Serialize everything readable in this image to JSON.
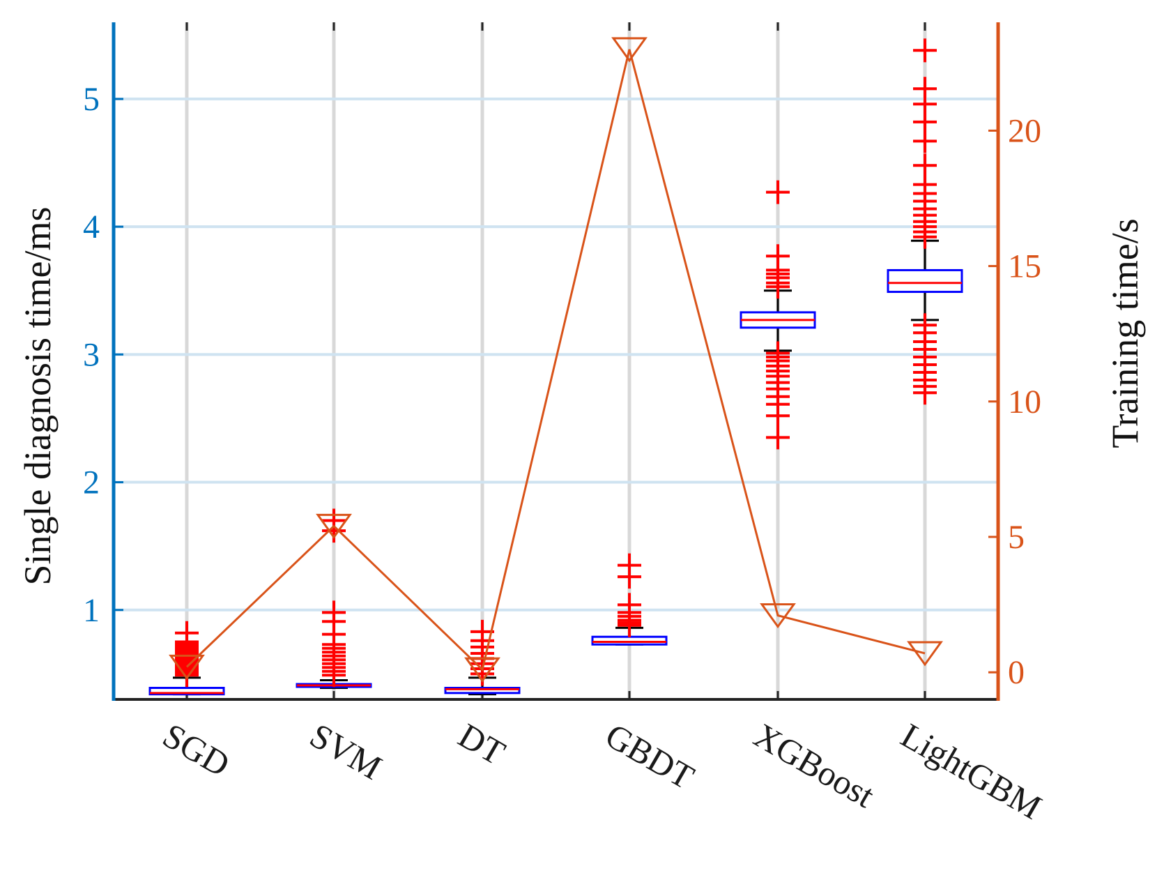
{
  "chart_data": {
    "type": "box",
    "categories": [
      "SGD",
      "SVM",
      "DT",
      "GBDT",
      "XGBoost",
      "LightGBM"
    ],
    "title": "",
    "xlabel": "",
    "ylabel_left": "Single diagnosis time/ms",
    "ylabel_right": "Training time/s",
    "ylim_left": [
      0.3,
      5.6
    ],
    "ylim_right": [
      -1,
      24
    ],
    "yticks_left": [
      "1",
      "2",
      "3",
      "4",
      "5"
    ],
    "yticks_right": [
      "0",
      "5",
      "10",
      "15",
      "20"
    ],
    "grid": true,
    "series": [
      {
        "name": "Single diagnosis time",
        "axis": "left",
        "kind": "box",
        "boxes": [
          {
            "category": "SGD",
            "q1": 0.34,
            "median": 0.35,
            "q3": 0.39,
            "whisker_low": 0.34,
            "whisker_high": 0.47,
            "outliers": [
              0.49,
              0.51,
              0.53,
              0.55,
              0.57,
              0.59,
              0.61,
              0.63,
              0.65,
              0.67,
              0.69,
              0.71,
              0.73,
              0.75,
              0.82
            ]
          },
          {
            "category": "SVM",
            "q1": 0.4,
            "median": 0.41,
            "q3": 0.42,
            "whisker_low": 0.39,
            "whisker_high": 0.45,
            "outliers": [
              0.49,
              0.52,
              0.55,
              0.58,
              0.61,
              0.64,
              0.67,
              0.7,
              0.73,
              0.81,
              0.91,
              0.98,
              1.62,
              1.7
            ]
          },
          {
            "category": "DT",
            "q1": 0.35,
            "median": 0.38,
            "q3": 0.39,
            "whisker_low": 0.34,
            "whisker_high": 0.47,
            "outliers": [
              0.5,
              0.54,
              0.58,
              0.62,
              0.66,
              0.71,
              0.76,
              0.83
            ]
          },
          {
            "category": "GBDT",
            "q1": 0.73,
            "median": 0.75,
            "q3": 0.79,
            "whisker_low": 0.73,
            "whisker_high": 0.86,
            "outliers": [
              0.88,
              0.9,
              0.92,
              0.95,
              0.98,
              1.04,
              1.26,
              1.35
            ]
          },
          {
            "category": "XGBoost",
            "q1": 3.21,
            "median": 3.27,
            "q3": 3.33,
            "whisker_low": 3.03,
            "whisker_high": 3.5,
            "outliers": [
              2.35,
              2.52,
              2.61,
              2.67,
              2.73,
              2.78,
              2.83,
              2.87,
              2.91,
              2.95,
              2.98,
              3.01,
              3.53,
              3.56,
              3.6,
              3.63,
              3.66,
              3.77,
              4.27
            ]
          },
          {
            "category": "LightGBM",
            "q1": 3.49,
            "median": 3.56,
            "q3": 3.66,
            "whisker_low": 3.27,
            "whisker_high": 3.89,
            "outliers": [
              2.7,
              2.75,
              2.8,
              2.86,
              2.92,
              2.98,
              3.04,
              3.1,
              3.17,
              3.23,
              3.92,
              3.96,
              4.0,
              4.04,
              4.09,
              4.14,
              4.2,
              4.26,
              4.33,
              4.48,
              4.67,
              4.82,
              4.96,
              5.08,
              5.38
            ]
          }
        ]
      },
      {
        "name": "Training time",
        "axis": "right",
        "kind": "line",
        "marker": "downward-triangle",
        "values": [
          0.2,
          5.4,
          0.1,
          23.0,
          2.1,
          0.7
        ]
      }
    ],
    "colors": {
      "left_axis": "#0072bd",
      "right_axis": "#d95319",
      "box": "#0000ff",
      "median": "#ff0000",
      "outlier": "#ff0000",
      "whisker": "#000000",
      "grid": "#cfe3f1",
      "vgrid": "#d8d8d8",
      "line": "#d95319"
    }
  }
}
